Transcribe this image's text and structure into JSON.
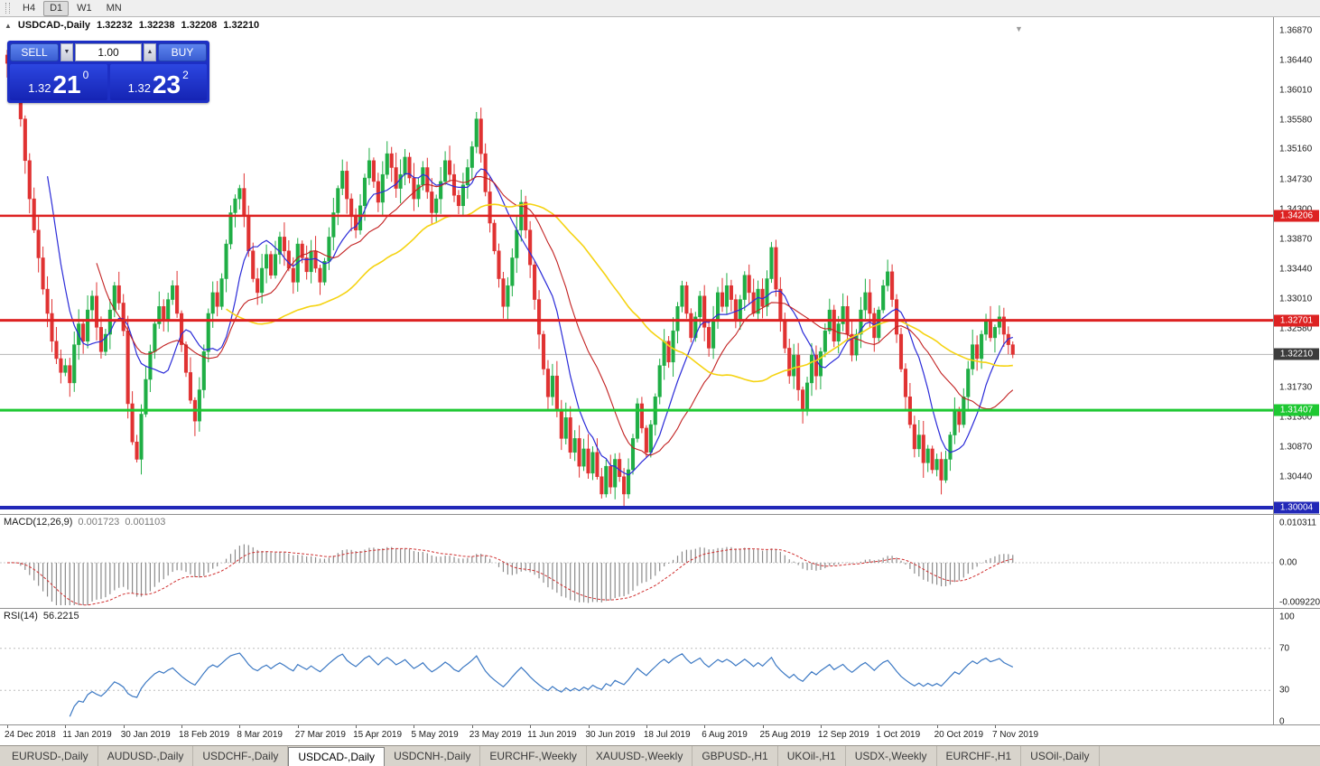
{
  "toolbar": {
    "timeframes": [
      {
        "label": "H4",
        "active": false
      },
      {
        "label": "D1",
        "active": true
      },
      {
        "label": "W1",
        "active": false
      },
      {
        "label": "MN",
        "active": false
      }
    ]
  },
  "icons": {
    "collapse_arrow": "▲",
    "spinner_down": "▼",
    "spinner_up": "▲",
    "scroll_to_end": "▼"
  },
  "chart_header": {
    "symbol": "USDCAD-,Daily",
    "open": "1.32232",
    "high": "1.32238",
    "low": "1.32208",
    "close": "1.32210"
  },
  "trade_panel": {
    "sell_label": "SELL",
    "buy_label": "BUY",
    "volume": "1.00",
    "sell_price": {
      "base": "1.32",
      "big": "21",
      "sup": "0"
    },
    "buy_price": {
      "base": "1.32",
      "big": "23",
      "sup": "2"
    }
  },
  "price_axis": [
    "1.36870",
    "1.36440",
    "1.36010",
    "1.35580",
    "1.35160",
    "1.34730",
    "1.34300",
    "1.33870",
    "1.33440",
    "1.33010",
    "1.32580",
    "1.31730",
    "1.31300",
    "1.30870",
    "1.30440"
  ],
  "macd_panel": {
    "name": "MACD(12,26,9)",
    "value": "0.001723",
    "signal": "0.001103",
    "axis": [
      "0.010311",
      "0.00",
      "-0.0092203"
    ]
  },
  "rsi_panel": {
    "name": "RSI(14)",
    "value": "56.2215",
    "axis": [
      "100",
      "70",
      "30",
      "0"
    ]
  },
  "tabs": [
    {
      "label": "EURUSD-,Daily",
      "active": false
    },
    {
      "label": "AUDUSD-,Daily",
      "active": false
    },
    {
      "label": "USDCHF-,Daily",
      "active": false
    },
    {
      "label": "USDCAD-,Daily",
      "active": true
    },
    {
      "label": "USDCNH-,Daily",
      "active": false
    },
    {
      "label": "EURCHF-,Weekly",
      "active": false
    },
    {
      "label": "XAUUSD-,Weekly",
      "active": false
    },
    {
      "label": "GBPUSD-,H1",
      "active": false
    },
    {
      "label": "UKOil-,H1",
      "active": false
    },
    {
      "label": "USDX-,Weekly",
      "active": false
    },
    {
      "label": "EURCHF-,H1",
      "active": false
    },
    {
      "label": "USOil-,Daily",
      "active": false
    }
  ],
  "chart_data": {
    "type": "candlestick",
    "symbol": "USDCAD",
    "timeframe": "Daily",
    "current_price": 1.3221,
    "current_label": "1.32210",
    "price_range": [
      1.299,
      1.37
    ],
    "candles_per_label": 13,
    "x_labels": [
      "24 Dec 2018",
      "11 Jan 2019",
      "30 Jan 2019",
      "18 Feb 2019",
      "8 Mar 2019",
      "27 Mar 2019",
      "15 Apr 2019",
      "5 May 2019",
      "23 May 2019",
      "11 Jun 2019",
      "30 Jun 2019",
      "18 Jul 2019",
      "6 Aug 2019",
      "25 Aug 2019",
      "12 Sep 2019",
      "1 Oct 2019",
      "20 Oct 2019",
      "7 Nov 2019"
    ],
    "closes": [
      1.364,
      1.3655,
      1.362,
      1.356,
      1.35,
      1.3445,
      1.34,
      1.336,
      1.3315,
      1.328,
      1.324,
      1.3215,
      1.3195,
      1.3205,
      1.318,
      1.3235,
      1.3265,
      1.324,
      1.3285,
      1.3305,
      1.326,
      1.3225,
      1.325,
      1.3285,
      1.332,
      1.3295,
      1.3255,
      1.315,
      1.3095,
      1.307,
      1.3135,
      1.3185,
      1.3225,
      1.3265,
      1.329,
      1.327,
      1.33,
      1.332,
      1.328,
      1.3235,
      1.3195,
      1.3155,
      1.3125,
      1.317,
      1.3225,
      1.328,
      1.331,
      1.329,
      1.333,
      1.338,
      1.3425,
      1.3445,
      1.346,
      1.342,
      1.337,
      1.333,
      1.331,
      1.3345,
      1.3365,
      1.3335,
      1.3365,
      1.339,
      1.337,
      1.3345,
      1.3325,
      1.338,
      1.336,
      1.334,
      1.337,
      1.3345,
      1.3325,
      1.3355,
      1.339,
      1.3425,
      1.346,
      1.3485,
      1.3445,
      1.342,
      1.34,
      1.3435,
      1.3475,
      1.35,
      1.347,
      1.344,
      1.348,
      1.351,
      1.349,
      1.346,
      1.348,
      1.3505,
      1.3475,
      1.3445,
      1.3465,
      1.349,
      1.3455,
      1.3425,
      1.3445,
      1.347,
      1.35,
      1.348,
      1.345,
      1.3435,
      1.3465,
      1.349,
      1.352,
      1.356,
      1.351,
      1.3455,
      1.341,
      1.337,
      1.333,
      1.329,
      1.332,
      1.336,
      1.34,
      1.344,
      1.34,
      1.335,
      1.33,
      1.325,
      1.32,
      1.316,
      1.319,
      1.314,
      1.31,
      1.313,
      1.308,
      1.31,
      1.306,
      1.3085,
      1.305,
      1.308,
      1.3045,
      1.302,
      1.306,
      1.303,
      1.307,
      1.3045,
      1.302,
      1.3055,
      1.31,
      1.315,
      1.3115,
      1.308,
      1.312,
      1.316,
      1.3205,
      1.324,
      1.321,
      1.3255,
      1.329,
      1.332,
      1.328,
      1.3245,
      1.3275,
      1.3305,
      1.326,
      1.323,
      1.327,
      1.331,
      1.329,
      1.332,
      1.33,
      1.327,
      1.33,
      1.3335,
      1.331,
      1.328,
      1.3315,
      1.329,
      1.333,
      1.3375,
      1.3315,
      1.327,
      1.323,
      1.319,
      1.322,
      1.317,
      1.314,
      1.318,
      1.322,
      1.319,
      1.3225,
      1.3255,
      1.3285,
      1.324,
      1.3265,
      1.329,
      1.325,
      1.322,
      1.325,
      1.3285,
      1.331,
      1.328,
      1.3245,
      1.3285,
      1.332,
      1.334,
      1.33,
      1.325,
      1.32,
      1.316,
      1.312,
      1.3085,
      1.3105,
      1.3065,
      1.3085,
      1.3055,
      1.307,
      1.304,
      1.307,
      1.3105,
      1.314,
      1.312,
      1.316,
      1.32,
      1.3235,
      1.3215,
      1.325,
      1.327,
      1.3245,
      1.326,
      1.3275,
      1.325,
      1.3235,
      1.3221
    ],
    "h_lines": [
      {
        "price": 1.34206,
        "label": "1.34206",
        "color": "#dd2222",
        "width": 2.5
      },
      {
        "price": 1.32701,
        "label": "1.32701",
        "color": "#dd2222",
        "width": 3
      },
      {
        "price": 1.31407,
        "label": "1.31407",
        "color": "#1ec832",
        "width": 3
      },
      {
        "price": 1.30004,
        "label": "1.30004",
        "color": "#2228b8",
        "width": 4
      }
    ],
    "moving_averages": [
      {
        "period": 10,
        "color": "#2b2bd8",
        "width": 1.2
      },
      {
        "period": 21,
        "color": "#c22020",
        "width": 1.1
      },
      {
        "period": 50,
        "color": "#f5d312",
        "width": 1.6
      }
    ],
    "indicators": {
      "macd": {
        "params": [
          12,
          26,
          9
        ],
        "value": 0.001723,
        "signal": 0.001103,
        "scale_max": 0.010311,
        "scale_min": -0.0092203
      },
      "rsi": {
        "period": 14,
        "value": 56.2215,
        "levels": [
          70,
          30
        ]
      }
    }
  }
}
